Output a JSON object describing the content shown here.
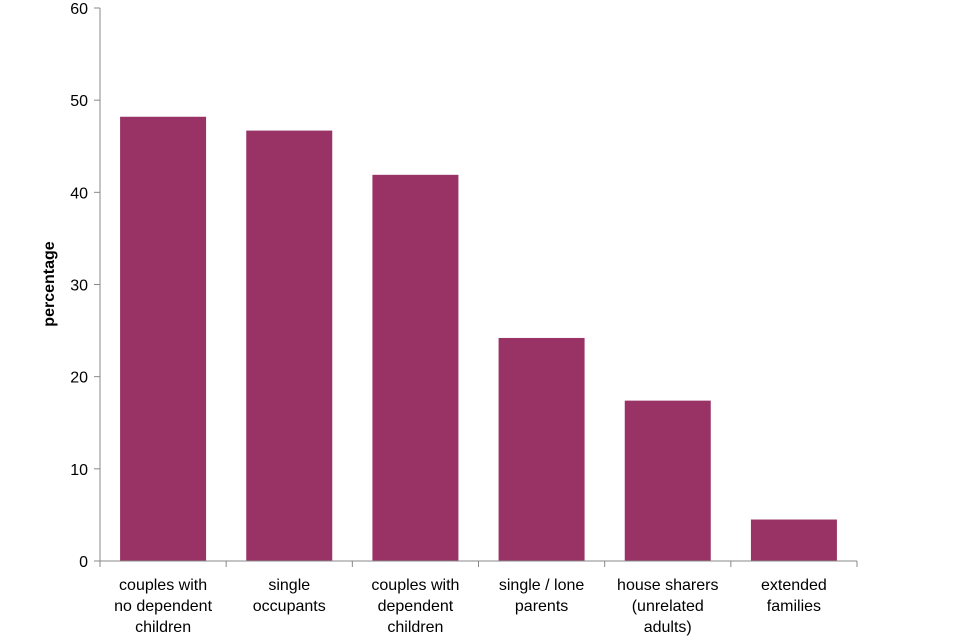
{
  "chart_data": {
    "type": "bar",
    "title": "",
    "xlabel": "",
    "ylabel": "percentage",
    "ylim": [
      0,
      60
    ],
    "yticks": [
      0,
      10,
      20,
      30,
      40,
      50,
      60
    ],
    "grid": false,
    "bar_color": "#993366",
    "categories": [
      [
        "couples with",
        "no dependent",
        "children"
      ],
      [
        "single",
        "occupants"
      ],
      [
        "couples with",
        "dependent",
        "children"
      ],
      [
        "single / lone",
        "parents"
      ],
      [
        "house sharers",
        "(unrelated",
        "adults)"
      ],
      [
        "extended",
        "families"
      ]
    ],
    "values": [
      48.2,
      46.7,
      41.9,
      24.2,
      17.4,
      4.5
    ]
  }
}
